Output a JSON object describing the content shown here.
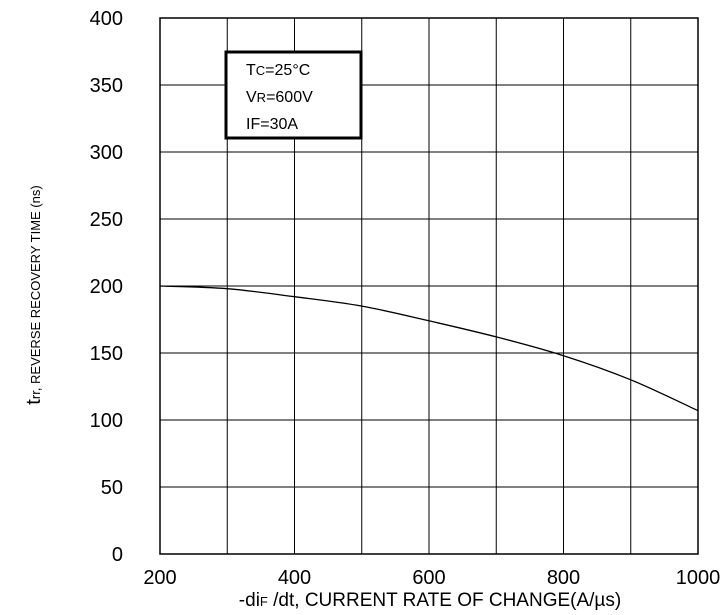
{
  "chart_data": {
    "type": "line",
    "xlabel": {
      "prefix": "-di",
      "sub": "F",
      "rest": " /dt, CURRENT RATE OF CHANGE(A/µs)"
    },
    "ylabel": {
      "big": "t",
      "sub": "rr",
      "rest": ", REVERSE RECOVERY TIME (ns)"
    },
    "xlim": [
      200,
      1000
    ],
    "ylim": [
      0,
      400
    ],
    "x_ticks": [
      "200",
      "400",
      "600",
      "800",
      "1000"
    ],
    "y_ticks": [
      "0",
      "50",
      "100",
      "150",
      "200",
      "250",
      "300",
      "350",
      "400"
    ],
    "x_grid_step": 100,
    "y_grid_step": 50,
    "grid": true,
    "annotation": [
      {
        "main": "T",
        "sub": "C",
        "rest": "=25°C"
      },
      {
        "main": "V",
        "sub": "R",
        "rest": "=600V"
      },
      {
        "main": "IF",
        "sub": "",
        "rest": "=30A"
      }
    ],
    "series": [
      {
        "x": [
          200,
          300,
          400,
          500,
          600,
          700,
          800,
          900,
          1000
        ],
        "y": [
          200,
          198,
          192,
          185,
          174,
          162,
          148,
          130,
          107
        ]
      }
    ]
  }
}
